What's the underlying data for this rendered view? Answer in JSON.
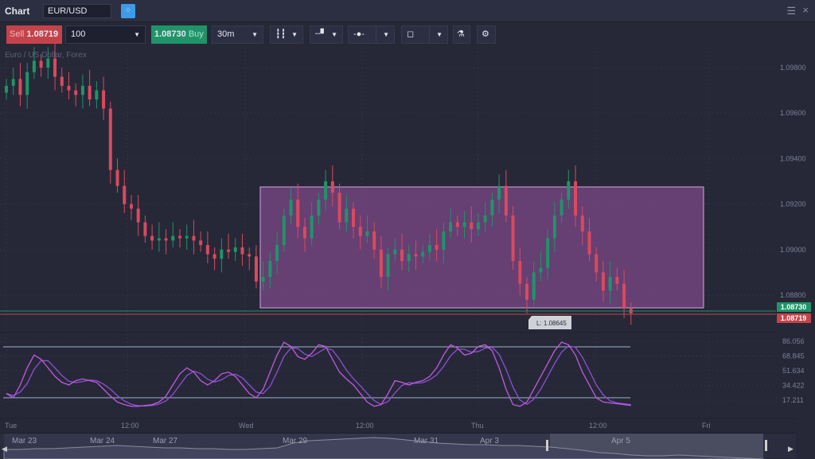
{
  "window": {
    "title": "Chart",
    "symbol": "EUR/USD",
    "menu_icon": "hamburger-icon",
    "close_icon": "close-icon"
  },
  "toolbar": {
    "sell_label": "Sell",
    "sell_price": "1.08719",
    "quantity": "100",
    "buy_price": "1.08730",
    "buy_label": "Buy",
    "timeframe": "30m"
  },
  "chart": {
    "instrument_label": "Euro / US Dollar, Forex",
    "colors": {
      "up": "#1f9469",
      "down": "#d94a5e",
      "rect": "#b86ac2",
      "osc1": "#c25ae0",
      "osc2": "#8e4fd6"
    },
    "price_ticks": [
      "1.09800",
      "1.09600",
      "1.09400",
      "1.09200",
      "1.09000",
      "1.08800"
    ],
    "ask_tag": "1.08730",
    "bid_tag": "1.08719",
    "low_label": "L: 1.08645",
    "osc_ticks": [
      "86.056",
      "68.845",
      "51.634",
      "34.422",
      "17.211"
    ],
    "time_labels": [
      "Tue",
      "12:00",
      "Wed",
      "12:00",
      "Thu",
      "12:00",
      "Fri"
    ],
    "navigator_labels": [
      "Mar 23",
      "Mar 24",
      "Mar 27",
      "Mar 29",
      "Mar 31",
      "Apr 3",
      "Apr 5"
    ],
    "closes": [
      1.0972,
      1.0975,
      1.0968,
      1.0978,
      1.0983,
      1.098,
      1.0984,
      1.0976,
      1.0972,
      1.097,
      1.0968,
      1.0972,
      1.0966,
      1.097,
      1.0962,
      1.0935,
      1.0928,
      1.092,
      1.0918,
      1.0912,
      1.0906,
      1.0904,
      1.0905,
      1.0904,
      1.0906,
      1.0905,
      1.0906,
      1.0904,
      1.0902,
      1.0898,
      1.0896,
      1.09,
      1.0899,
      1.0901,
      1.0898,
      1.0897,
      1.0886,
      1.0888,
      1.0895,
      1.0902,
      1.0915,
      1.0922,
      1.091,
      1.0905,
      1.0915,
      1.0922,
      1.093,
      1.0925,
      1.0912,
      1.0918,
      1.091,
      1.0906,
      1.0908,
      1.09,
      1.0888,
      1.0898,
      1.09,
      1.0895,
      1.0898,
      1.0897,
      1.0899,
      1.0902,
      1.09,
      1.0908,
      1.0912,
      1.091,
      1.0912,
      1.0909,
      1.0912,
      1.0915,
      1.0922,
      1.0928,
      1.0915,
      1.0895,
      1.0885,
      1.0878,
      1.089,
      1.0892,
      1.0905,
      1.0915,
      1.0922,
      1.093,
      1.0915,
      1.0908,
      1.0898,
      1.089,
      1.0882,
      1.0888,
      1.0885,
      1.0874,
      1.0872
    ],
    "oscillator": [
      25,
      20,
      35,
      55,
      70,
      65,
      55,
      45,
      38,
      35,
      40,
      42,
      40,
      38,
      30,
      22,
      15,
      12,
      10,
      10,
      11,
      12,
      15,
      22,
      35,
      48,
      55,
      50,
      40,
      35,
      40,
      48,
      50,
      45,
      35,
      25,
      20,
      30,
      50,
      70,
      85,
      80,
      68,
      65,
      72,
      82,
      80,
      65,
      50,
      42,
      35,
      25,
      15,
      10,
      12,
      25,
      40,
      38,
      35,
      38,
      40,
      45,
      55,
      70,
      82,
      78,
      70,
      72,
      80,
      82,
      75,
      55,
      30,
      12,
      10,
      15,
      30,
      45,
      60,
      75,
      85,
      82,
      70,
      50,
      35,
      20,
      15,
      14,
      13,
      12,
      11
    ]
  }
}
